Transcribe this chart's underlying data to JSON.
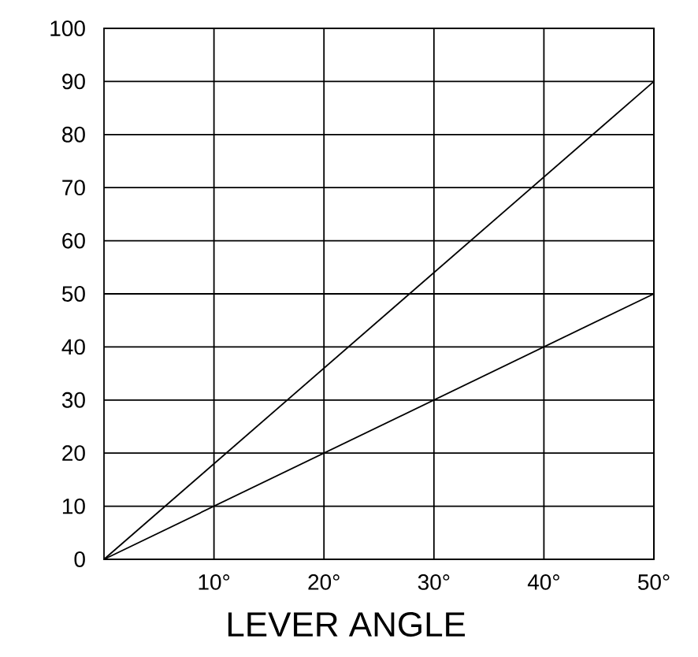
{
  "chart_data": {
    "type": "line",
    "xlabel": "LEVER ANGLE",
    "x": [
      0,
      50
    ],
    "series": [
      {
        "color": "#000000",
        "values": [
          0,
          90
        ]
      },
      {
        "color": "#000000",
        "values": [
          0,
          50
        ]
      }
    ],
    "xlim": [
      0,
      50
    ],
    "ylim": [
      0,
      100
    ],
    "xticks": [
      {
        "value": 10,
        "label": "10°"
      },
      {
        "value": 20,
        "label": "20°"
      },
      {
        "value": 30,
        "label": "30°"
      },
      {
        "value": 40,
        "label": "40°"
      },
      {
        "value": 50,
        "label": "50°"
      }
    ],
    "yticks": [
      0,
      10,
      20,
      30,
      40,
      50,
      60,
      70,
      80,
      90,
      100
    ],
    "grid": true
  }
}
